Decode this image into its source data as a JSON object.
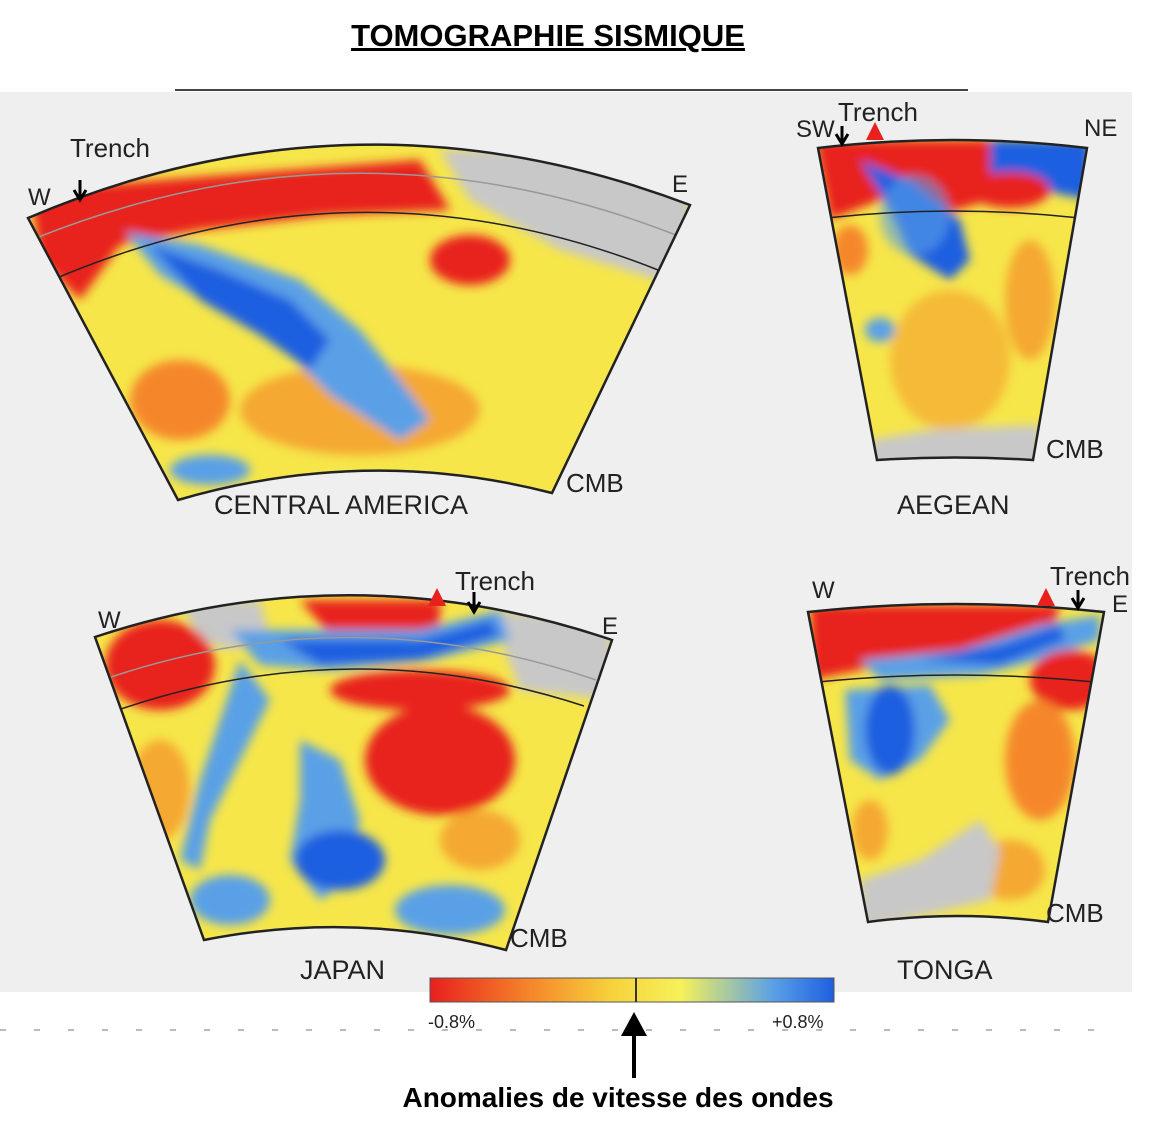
{
  "title": "TOMOGRAPHIE SISMIQUE",
  "caption": "Anomalies de vitesse des ondes",
  "colorbar": {
    "min_label": "-0.8%",
    "max_label": "+0.8%",
    "colors": [
      "#e8201e",
      "#f5872a",
      "#f7d23c",
      "#f6f15a",
      "#5aa0e6",
      "#1e5fe0"
    ]
  },
  "panels": {
    "central_america": {
      "name": "CENTRAL AMERICA",
      "left": "W",
      "right": "E",
      "trench": "Trench",
      "bottom": "CMB"
    },
    "aegean": {
      "name": "AEGEAN",
      "left": "SW",
      "right": "NE",
      "trench": "Trench",
      "bottom": "CMB"
    },
    "japan": {
      "name": "JAPAN",
      "left": "W",
      "right": "E",
      "trench": "Trench",
      "bottom": "CMB"
    },
    "tonga": {
      "name": "TONGA",
      "left": "W",
      "right": "E",
      "trench": "Trench",
      "bottom": "CMB"
    }
  },
  "colors": {
    "slow": "#e8201e",
    "neutral": "#f6e64a",
    "fast": "#1e5fe0",
    "no_data": "#c8c8c8",
    "panel_bg": "#efefef"
  }
}
